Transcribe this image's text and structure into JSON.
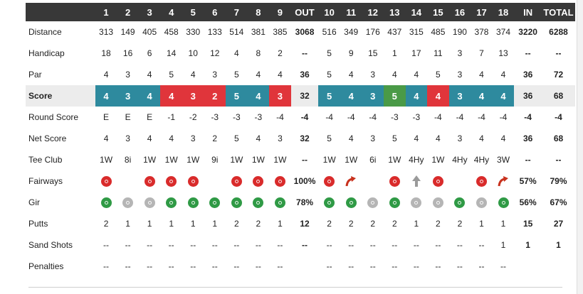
{
  "header": {
    "holes": [
      "1",
      "2",
      "3",
      "4",
      "5",
      "6",
      "7",
      "8",
      "9",
      "OUT",
      "10",
      "11",
      "12",
      "13",
      "14",
      "15",
      "16",
      "17",
      "18",
      "IN",
      "TOTAL"
    ]
  },
  "rows": [
    {
      "label": "Distance",
      "cells": [
        "313",
        "149",
        "405",
        "458",
        "330",
        "133",
        "514",
        "381",
        "385",
        "3068",
        "516",
        "349",
        "176",
        "437",
        "315",
        "485",
        "190",
        "378",
        "374",
        "3220",
        "6288"
      ]
    },
    {
      "label": "Handicap",
      "cells": [
        "18",
        "16",
        "6",
        "14",
        "10",
        "12",
        "4",
        "8",
        "2",
        "--",
        "5",
        "9",
        "15",
        "1",
        "17",
        "11",
        "3",
        "7",
        "13",
        "--",
        "--"
      ]
    },
    {
      "label": "Par",
      "cells": [
        "4",
        "3",
        "4",
        "5",
        "4",
        "3",
        "5",
        "4",
        "4",
        "36",
        "5",
        "4",
        "3",
        "4",
        "4",
        "5",
        "3",
        "4",
        "4",
        "36",
        "72"
      ]
    },
    {
      "label": "Score",
      "cells": [
        "4",
        "3",
        "4",
        "4",
        "3",
        "2",
        "5",
        "4",
        "3",
        "32",
        "5",
        "4",
        "3",
        "5",
        "4",
        "4",
        "3",
        "4",
        "4",
        "36",
        "68"
      ]
    },
    {
      "label": "Round Score",
      "cells": [
        "E",
        "E",
        "E",
        "-1",
        "-2",
        "-3",
        "-3",
        "-3",
        "-4",
        "-4",
        "-4",
        "-4",
        "-4",
        "-3",
        "-3",
        "-4",
        "-4",
        "-4",
        "-4",
        "-4",
        "-4"
      ]
    },
    {
      "label": "Net Score",
      "cells": [
        "4",
        "3",
        "4",
        "4",
        "3",
        "2",
        "5",
        "4",
        "3",
        "32",
        "5",
        "4",
        "3",
        "5",
        "4",
        "4",
        "3",
        "4",
        "4",
        "36",
        "68"
      ]
    },
    {
      "label": "Tee Club",
      "cells": [
        "1W",
        "8i",
        "1W",
        "1W",
        "1W",
        "9i",
        "1W",
        "1W",
        "1W",
        "--",
        "1W",
        "1W",
        "6i",
        "1W",
        "4Hy",
        "1W",
        "4Hy",
        "4Hy",
        "3W",
        "--",
        "--"
      ]
    },
    {
      "label": "Fairways",
      "cells": [
        "",
        "",
        "",
        "",
        "",
        "",
        "",
        "",
        "",
        "100%",
        "",
        "",
        "",
        "",
        "",
        "",
        "",
        "",
        "",
        "57%",
        "79%"
      ]
    },
    {
      "label": "Gir",
      "cells": [
        "",
        "",
        "",
        "",
        "",
        "",
        "",
        "",
        "",
        "78%",
        "",
        "",
        "",
        "",
        "",
        "",
        "",
        "",
        "",
        "56%",
        "67%"
      ]
    },
    {
      "label": "Putts",
      "cells": [
        "2",
        "1",
        "1",
        "1",
        "1",
        "1",
        "2",
        "2",
        "1",
        "12",
        "2",
        "2",
        "2",
        "2",
        "1",
        "2",
        "2",
        "1",
        "1",
        "15",
        "27"
      ]
    },
    {
      "label": "Sand Shots",
      "cells": [
        "--",
        "--",
        "--",
        "--",
        "--",
        "--",
        "--",
        "--",
        "--",
        "--",
        "--",
        "--",
        "--",
        "--",
        "--",
        "--",
        "--",
        "--",
        "1",
        "1",
        "1"
      ]
    },
    {
      "label": "Penalties",
      "cells": [
        "--",
        "--",
        "--",
        "--",
        "--",
        "--",
        "--",
        "--",
        "--",
        "",
        "--",
        "--",
        "--",
        "--",
        "--",
        "--",
        "--",
        "--",
        "--",
        "",
        ""
      ]
    }
  ],
  "score_colors": [
    "par",
    "par",
    "par",
    "bogey",
    "bogey",
    "bogey",
    "par",
    "par",
    "bogey",
    "",
    "par",
    "par",
    "par",
    "birdie",
    "par",
    "bogey",
    "par",
    "par",
    "par",
    "",
    ""
  ],
  "fairway_icons": [
    "miss-icon",
    "",
    "miss-icon",
    "miss-icon",
    "miss-icon",
    "",
    "miss-icon",
    "miss-icon",
    "miss-icon",
    "",
    "miss-icon",
    "right-arrow-icon",
    "",
    "miss-icon",
    "up-arrow-icon",
    "miss-icon",
    "",
    "miss-icon",
    "right-arrow-icon",
    "",
    ""
  ],
  "gir_icons": [
    "hit-icon",
    "gray-icon",
    "gray-icon",
    "hit-icon",
    "hit-icon",
    "hit-icon",
    "hit-icon",
    "hit-icon",
    "hit-icon",
    "",
    "hit-icon",
    "hit-icon",
    "gray-icon",
    "hit-icon",
    "gray-icon",
    "gray-icon",
    "hit-icon",
    "gray-icon",
    "hit-icon",
    "",
    ""
  ],
  "colors": {
    "header_bg": "#383838",
    "par": "#2e8a9e",
    "bogey": "#e0353b",
    "birdie": "#4a9a47",
    "miss": "#d92b2b",
    "hit": "#2f9a45",
    "gray": "#b5b5b5",
    "arrow_red": "#c8321e"
  }
}
